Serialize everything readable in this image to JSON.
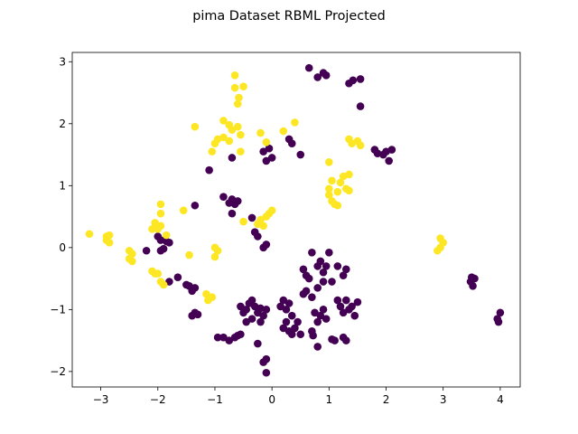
{
  "chart_data": {
    "type": "scatter",
    "title": "pima Dataset RBML Projected",
    "xlabel": "",
    "ylabel": "",
    "xlim": [
      -3.5,
      4.35
    ],
    "ylim": [
      -2.25,
      3.15
    ],
    "xticks": [
      -3,
      -2,
      -1,
      0,
      1,
      2,
      3,
      4
    ],
    "yticks": [
      -2,
      -1,
      0,
      1,
      2,
      3
    ],
    "grid": false,
    "colors": {
      "class_0": "#440154",
      "class_1": "#fde725"
    },
    "series": [
      {
        "class": 0,
        "color": "#440154",
        "points": [
          [
            0.65,
            2.9
          ],
          [
            0.8,
            2.75
          ],
          [
            0.9,
            2.82
          ],
          [
            0.95,
            2.78
          ],
          [
            1.35,
            2.65
          ],
          [
            1.42,
            2.7
          ],
          [
            1.55,
            2.72
          ],
          [
            1.55,
            2.28
          ],
          [
            -0.7,
            1.45
          ],
          [
            -1.1,
            1.25
          ],
          [
            -0.15,
            1.55
          ],
          [
            -0.05,
            1.6
          ],
          [
            -0.1,
            1.4
          ],
          [
            0.0,
            1.45
          ],
          [
            0.3,
            1.75
          ],
          [
            0.35,
            1.68
          ],
          [
            0.5,
            1.5
          ],
          [
            1.8,
            1.58
          ],
          [
            1.85,
            1.52
          ],
          [
            1.95,
            1.5
          ],
          [
            2.0,
            1.55
          ],
          [
            2.05,
            1.4
          ],
          [
            2.1,
            1.58
          ],
          [
            -0.85,
            0.82
          ],
          [
            -0.75,
            0.72
          ],
          [
            -0.7,
            0.78
          ],
          [
            -0.65,
            0.7
          ],
          [
            -0.7,
            0.55
          ],
          [
            -0.6,
            0.75
          ],
          [
            -1.35,
            0.68
          ],
          [
            -0.35,
            0.48
          ],
          [
            -0.3,
            0.25
          ],
          [
            -0.25,
            0.18
          ],
          [
            -0.15,
            0.0
          ],
          [
            -0.1,
            0.05
          ],
          [
            -2.0,
            0.18
          ],
          [
            -1.95,
            0.12
          ],
          [
            -1.85,
            0.1
          ],
          [
            -1.8,
            0.08
          ],
          [
            -1.9,
            -0.02
          ],
          [
            -1.95,
            -0.05
          ],
          [
            -2.2,
            -0.05
          ],
          [
            -1.65,
            -0.48
          ],
          [
            -1.8,
            -0.55
          ],
          [
            -1.5,
            -0.6
          ],
          [
            -1.45,
            -0.62
          ],
          [
            -1.35,
            -0.65
          ],
          [
            -1.4,
            -0.7
          ],
          [
            -1.35,
            -1.05
          ],
          [
            -1.4,
            -1.1
          ],
          [
            -1.3,
            -1.08
          ],
          [
            -0.95,
            -1.45
          ],
          [
            -0.85,
            -1.45
          ],
          [
            -0.75,
            -1.5
          ],
          [
            -0.65,
            -1.45
          ],
          [
            -0.6,
            -1.42
          ],
          [
            -0.55,
            -1.4
          ],
          [
            -0.55,
            -0.95
          ],
          [
            -0.5,
            -1.05
          ],
          [
            -0.45,
            -1.0
          ],
          [
            -0.4,
            -0.9
          ],
          [
            -0.35,
            -0.85
          ],
          [
            -0.3,
            -0.95
          ],
          [
            -0.25,
            -1.05
          ],
          [
            -0.2,
            -0.98
          ],
          [
            -0.15,
            -1.1
          ],
          [
            -0.1,
            -1.0
          ],
          [
            -0.45,
            -1.2
          ],
          [
            -0.35,
            -1.15
          ],
          [
            -0.2,
            -1.2
          ],
          [
            -0.25,
            -1.55
          ],
          [
            -0.15,
            -1.85
          ],
          [
            -0.1,
            -1.8
          ],
          [
            -0.1,
            -2.02
          ],
          [
            0.15,
            -0.95
          ],
          [
            0.2,
            -0.85
          ],
          [
            0.25,
            -1.0
          ],
          [
            0.3,
            -0.9
          ],
          [
            0.35,
            -1.1
          ],
          [
            0.25,
            -1.2
          ],
          [
            0.2,
            -1.3
          ],
          [
            0.3,
            -1.35
          ],
          [
            0.35,
            -1.4
          ],
          [
            0.4,
            -1.3
          ],
          [
            0.45,
            -1.2
          ],
          [
            0.5,
            -1.4
          ],
          [
            0.55,
            -0.35
          ],
          [
            0.6,
            -0.45
          ],
          [
            0.65,
            -0.5
          ],
          [
            0.6,
            -0.7
          ],
          [
            0.55,
            -0.75
          ],
          [
            0.7,
            -0.8
          ],
          [
            0.8,
            -0.65
          ],
          [
            0.9,
            -0.55
          ],
          [
            0.7,
            -0.08
          ],
          [
            0.8,
            -0.3
          ],
          [
            0.85,
            -0.22
          ],
          [
            0.95,
            -0.3
          ],
          [
            0.9,
            -0.4
          ],
          [
            0.75,
            -1.05
          ],
          [
            0.8,
            -1.2
          ],
          [
            0.85,
            -1.1
          ],
          [
            0.9,
            -1.0
          ],
          [
            0.95,
            -1.15
          ],
          [
            0.7,
            -1.35
          ],
          [
            0.72,
            -1.42
          ],
          [
            0.8,
            -1.6
          ],
          [
            1.05,
            -0.55
          ],
          [
            1.15,
            -0.85
          ],
          [
            1.2,
            -0.95
          ],
          [
            1.25,
            -1.05
          ],
          [
            1.3,
            -0.85
          ],
          [
            1.35,
            -1.0
          ],
          [
            1.4,
            -0.95
          ],
          [
            1.45,
            -1.1
          ],
          [
            1.5,
            -0.88
          ],
          [
            1.0,
            -0.08
          ],
          [
            1.15,
            -0.3
          ],
          [
            1.25,
            -0.45
          ],
          [
            1.3,
            -0.35
          ],
          [
            1.05,
            -1.48
          ],
          [
            1.1,
            -1.5
          ],
          [
            1.25,
            -1.45
          ],
          [
            1.3,
            -1.5
          ],
          [
            3.5,
            -0.48
          ],
          [
            3.55,
            -0.5
          ],
          [
            3.48,
            -0.55
          ],
          [
            3.52,
            -0.62
          ],
          [
            3.95,
            -1.15
          ],
          [
            3.97,
            -1.2
          ],
          [
            4.0,
            -1.05
          ]
        ]
      },
      {
        "class": 1,
        "color": "#fde725",
        "points": [
          [
            -0.65,
            2.78
          ],
          [
            -0.65,
            2.58
          ],
          [
            -0.5,
            2.6
          ],
          [
            -0.58,
            2.42
          ],
          [
            -0.6,
            2.32
          ],
          [
            -1.35,
            1.95
          ],
          [
            -0.85,
            2.05
          ],
          [
            -0.75,
            1.98
          ],
          [
            -0.7,
            1.9
          ],
          [
            -0.6,
            1.95
          ],
          [
            -0.55,
            1.82
          ],
          [
            -0.95,
            1.75
          ],
          [
            -1.0,
            1.68
          ],
          [
            -1.05,
            1.55
          ],
          [
            -0.85,
            1.78
          ],
          [
            -0.75,
            1.72
          ],
          [
            -0.55,
            1.55
          ],
          [
            -0.2,
            1.85
          ],
          [
            -0.1,
            1.7
          ],
          [
            0.2,
            1.88
          ],
          [
            0.4,
            2.02
          ],
          [
            1.35,
            1.75
          ],
          [
            1.4,
            1.68
          ],
          [
            1.5,
            1.72
          ],
          [
            1.55,
            1.65
          ],
          [
            1.0,
            1.38
          ],
          [
            1.05,
            1.08
          ],
          [
            1.15,
            0.9
          ],
          [
            1.2,
            1.05
          ],
          [
            1.25,
            1.15
          ],
          [
            1.35,
            1.18
          ],
          [
            1.3,
            0.95
          ],
          [
            1.35,
            0.92
          ],
          [
            1.0,
            0.95
          ],
          [
            1.0,
            0.85
          ],
          [
            1.05,
            0.75
          ],
          [
            1.1,
            0.7
          ],
          [
            1.15,
            0.68
          ],
          [
            -1.95,
            0.7
          ],
          [
            -1.95,
            0.55
          ],
          [
            -2.05,
            0.4
          ],
          [
            -2.0,
            0.3
          ],
          [
            -1.95,
            0.35
          ],
          [
            -1.85,
            0.2
          ],
          [
            -2.1,
            0.3
          ],
          [
            -1.55,
            0.6
          ],
          [
            -1.45,
            -0.12
          ],
          [
            -0.5,
            0.42
          ],
          [
            -0.2,
            0.45
          ],
          [
            -0.15,
            0.35
          ],
          [
            -0.1,
            0.5
          ],
          [
            0.0,
            0.6
          ],
          [
            -0.05,
            0.55
          ],
          [
            -0.25,
            0.38
          ],
          [
            -3.2,
            0.22
          ],
          [
            -2.9,
            0.18
          ],
          [
            -2.85,
            0.2
          ],
          [
            -2.9,
            0.12
          ],
          [
            -2.85,
            0.08
          ],
          [
            -2.5,
            -0.05
          ],
          [
            -2.45,
            -0.1
          ],
          [
            -2.5,
            -0.18
          ],
          [
            -2.45,
            -0.22
          ],
          [
            -2.1,
            -0.38
          ],
          [
            -2.05,
            -0.42
          ],
          [
            -2.0,
            -0.42
          ],
          [
            -1.95,
            -0.55
          ],
          [
            -1.9,
            -0.6
          ],
          [
            -1.15,
            -0.75
          ],
          [
            -1.12,
            -0.85
          ],
          [
            -1.05,
            -0.8
          ],
          [
            -1.0,
            0.0
          ],
          [
            -0.95,
            -0.05
          ],
          [
            -1.0,
            -0.15
          ],
          [
            2.95,
            0.15
          ],
          [
            3.0,
            0.08
          ],
          [
            2.9,
            -0.05
          ],
          [
            2.95,
            0.0
          ]
        ]
      }
    ]
  }
}
